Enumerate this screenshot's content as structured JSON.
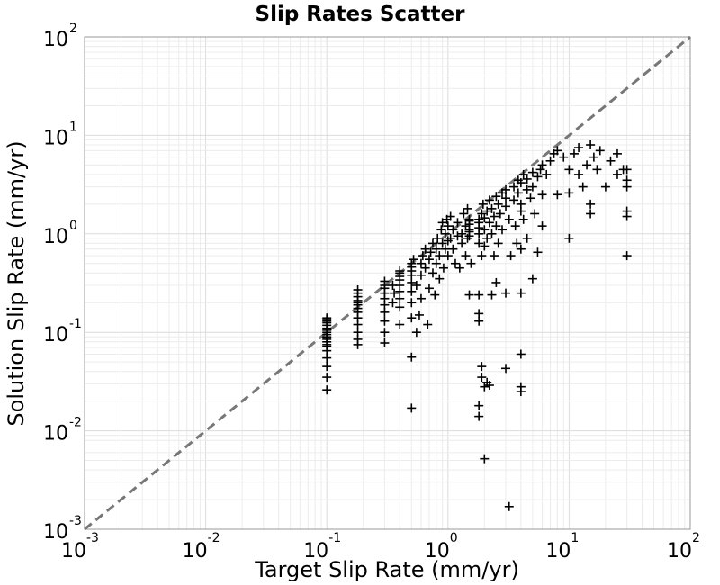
{
  "chart_data": {
    "type": "scatter",
    "title": "Slip Rates Scatter",
    "xlabel": "Target Slip Rate (mm/yr)",
    "ylabel": "Solution Slip Rate (mm/yr)",
    "xscale": "log",
    "yscale": "log",
    "xlim": [
      0.001,
      100
    ],
    "ylim": [
      0.001,
      100
    ],
    "grid": true,
    "marker": "+",
    "marker_color": "#000000",
    "reference_line": {
      "style": "dashed",
      "color": "#777777",
      "x": [
        0.001,
        100
      ],
      "y": [
        0.001,
        100
      ]
    },
    "x_ticks": [
      {
        "base": "10",
        "exp": "-3"
      },
      {
        "base": "10",
        "exp": "-2"
      },
      {
        "base": "10",
        "exp": "-1"
      },
      {
        "base": "10",
        "exp": "0"
      },
      {
        "base": "10",
        "exp": "1"
      },
      {
        "base": "10",
        "exp": "2"
      }
    ],
    "y_ticks": [
      {
        "base": "10",
        "exp": "-3"
      },
      {
        "base": "10",
        "exp": "-2"
      },
      {
        "base": "10",
        "exp": "-1"
      },
      {
        "base": "10",
        "exp": "0"
      },
      {
        "base": "10",
        "exp": "1"
      },
      {
        "base": "10",
        "exp": "2"
      }
    ],
    "points": [
      {
        "x": 0.1,
        "y": 0.026
      },
      {
        "x": 0.1,
        "y": 0.035
      },
      {
        "x": 0.1,
        "y": 0.045
      },
      {
        "x": 0.1,
        "y": 0.055
      },
      {
        "x": 0.1,
        "y": 0.065
      },
      {
        "x": 0.1,
        "y": 0.072
      },
      {
        "x": 0.1,
        "y": 0.08
      },
      {
        "x": 0.1,
        "y": 0.088
      },
      {
        "x": 0.1,
        "y": 0.095
      },
      {
        "x": 0.1,
        "y": 0.1
      },
      {
        "x": 0.1,
        "y": 0.105
      },
      {
        "x": 0.1,
        "y": 0.11
      },
      {
        "x": 0.1,
        "y": 0.118
      },
      {
        "x": 0.1,
        "y": 0.125
      },
      {
        "x": 0.1,
        "y": 0.13
      },
      {
        "x": 0.1,
        "y": 0.135
      },
      {
        "x": 0.1,
        "y": 0.14
      },
      {
        "x": 0.1,
        "y": 0.09
      },
      {
        "x": 0.1,
        "y": 0.085
      },
      {
        "x": 0.1,
        "y": 0.075
      },
      {
        "x": 0.18,
        "y": 0.075
      },
      {
        "x": 0.18,
        "y": 0.085
      },
      {
        "x": 0.18,
        "y": 0.1
      },
      {
        "x": 0.18,
        "y": 0.12
      },
      {
        "x": 0.18,
        "y": 0.14
      },
      {
        "x": 0.18,
        "y": 0.16
      },
      {
        "x": 0.18,
        "y": 0.175
      },
      {
        "x": 0.18,
        "y": 0.19
      },
      {
        "x": 0.18,
        "y": 0.2
      },
      {
        "x": 0.18,
        "y": 0.21
      },
      {
        "x": 0.18,
        "y": 0.23
      },
      {
        "x": 0.18,
        "y": 0.25
      },
      {
        "x": 0.18,
        "y": 0.27
      },
      {
        "x": 0.3,
        "y": 0.078
      },
      {
        "x": 0.3,
        "y": 0.1
      },
      {
        "x": 0.3,
        "y": 0.13
      },
      {
        "x": 0.3,
        "y": 0.16
      },
      {
        "x": 0.3,
        "y": 0.19
      },
      {
        "x": 0.3,
        "y": 0.22
      },
      {
        "x": 0.3,
        "y": 0.25
      },
      {
        "x": 0.3,
        "y": 0.28
      },
      {
        "x": 0.3,
        "y": 0.3
      },
      {
        "x": 0.3,
        "y": 0.33
      },
      {
        "x": 0.35,
        "y": 0.2
      },
      {
        "x": 0.35,
        "y": 0.3
      },
      {
        "x": 0.36,
        "y": 0.25
      },
      {
        "x": 0.4,
        "y": 0.12
      },
      {
        "x": 0.4,
        "y": 0.18
      },
      {
        "x": 0.4,
        "y": 0.22
      },
      {
        "x": 0.4,
        "y": 0.26
      },
      {
        "x": 0.4,
        "y": 0.3
      },
      {
        "x": 0.4,
        "y": 0.34
      },
      {
        "x": 0.4,
        "y": 0.37
      },
      {
        "x": 0.4,
        "y": 0.4
      },
      {
        "x": 0.4,
        "y": 0.42
      },
      {
        "x": 0.5,
        "y": 0.017
      },
      {
        "x": 0.5,
        "y": 0.056
      },
      {
        "x": 0.5,
        "y": 0.14
      },
      {
        "x": 0.5,
        "y": 0.2
      },
      {
        "x": 0.5,
        "y": 0.26
      },
      {
        "x": 0.5,
        "y": 0.32
      },
      {
        "x": 0.5,
        "y": 0.38
      },
      {
        "x": 0.5,
        "y": 0.42
      },
      {
        "x": 0.5,
        "y": 0.46
      },
      {
        "x": 0.5,
        "y": 0.5
      },
      {
        "x": 0.52,
        "y": 0.55
      },
      {
        "x": 0.55,
        "y": 0.1
      },
      {
        "x": 0.55,
        "y": 0.3
      },
      {
        "x": 0.58,
        "y": 0.15
      },
      {
        "x": 0.6,
        "y": 0.22
      },
      {
        "x": 0.6,
        "y": 0.38
      },
      {
        "x": 0.6,
        "y": 0.5
      },
      {
        "x": 0.62,
        "y": 0.6
      },
      {
        "x": 0.65,
        "y": 0.45
      },
      {
        "x": 0.65,
        "y": 0.7
      },
      {
        "x": 0.68,
        "y": 0.12
      },
      {
        "x": 0.7,
        "y": 0.28
      },
      {
        "x": 0.7,
        "y": 0.55
      },
      {
        "x": 0.72,
        "y": 0.65
      },
      {
        "x": 0.75,
        "y": 0.8
      },
      {
        "x": 0.75,
        "y": 0.4
      },
      {
        "x": 0.78,
        "y": 0.24
      },
      {
        "x": 0.8,
        "y": 0.5
      },
      {
        "x": 0.8,
        "y": 0.7
      },
      {
        "x": 0.82,
        "y": 0.9
      },
      {
        "x": 0.85,
        "y": 0.6
      },
      {
        "x": 0.85,
        "y": 0.35
      },
      {
        "x": 0.88,
        "y": 1.1
      },
      {
        "x": 0.9,
        "y": 0.8
      },
      {
        "x": 0.9,
        "y": 1.3
      },
      {
        "x": 0.92,
        "y": 0.45
      },
      {
        "x": 0.95,
        "y": 0.7
      },
      {
        "x": 0.95,
        "y": 1.0
      },
      {
        "x": 0.98,
        "y": 1.4
      },
      {
        "x": 1.0,
        "y": 0.6
      },
      {
        "x": 1.0,
        "y": 0.85
      },
      {
        "x": 1.0,
        "y": 1.2
      },
      {
        "x": 1.05,
        "y": 0.9
      },
      {
        "x": 1.05,
        "y": 1.5
      },
      {
        "x": 1.1,
        "y": 0.7
      },
      {
        "x": 1.1,
        "y": 1.1
      },
      {
        "x": 1.15,
        "y": 0.5
      },
      {
        "x": 1.2,
        "y": 0.95
      },
      {
        "x": 1.2,
        "y": 1.3
      },
      {
        "x": 1.25,
        "y": 0.45
      },
      {
        "x": 1.3,
        "y": 1.0
      },
      {
        "x": 1.3,
        "y": 0.8
      },
      {
        "x": 1.35,
        "y": 1.6
      },
      {
        "x": 1.4,
        "y": 1.2
      },
      {
        "x": 1.4,
        "y": 0.6
      },
      {
        "x": 1.45,
        "y": 1.8
      },
      {
        "x": 1.45,
        "y": 0.9
      },
      {
        "x": 1.5,
        "y": 1.4
      },
      {
        "x": 1.5,
        "y": 1.1
      },
      {
        "x": 1.55,
        "y": 0.5
      },
      {
        "x": 1.5,
        "y": 0.24
      },
      {
        "x": 1.5,
        "y": 0.95
      },
      {
        "x": 1.5,
        "y": 1.25
      },
      {
        "x": 1.5,
        "y": 1.05
      },
      {
        "x": 1.5,
        "y": 1.35
      },
      {
        "x": 1.8,
        "y": 0.014
      },
      {
        "x": 1.8,
        "y": 0.018
      },
      {
        "x": 1.8,
        "y": 0.13
      },
      {
        "x": 1.8,
        "y": 0.155
      },
      {
        "x": 1.8,
        "y": 0.24
      },
      {
        "x": 1.8,
        "y": 0.8
      },
      {
        "x": 1.8,
        "y": 1.0
      },
      {
        "x": 1.8,
        "y": 1.15
      },
      {
        "x": 1.8,
        "y": 1.3
      },
      {
        "x": 1.8,
        "y": 1.4
      },
      {
        "x": 1.9,
        "y": 0.045
      },
      {
        "x": 1.9,
        "y": 0.035
      },
      {
        "x": 1.9,
        "y": 0.6
      },
      {
        "x": 1.9,
        "y": 1.6
      },
      {
        "x": 1.95,
        "y": 2.0
      },
      {
        "x": 2.0,
        "y": 0.0052
      },
      {
        "x": 2.0,
        "y": 0.028
      },
      {
        "x": 2.0,
        "y": 0.75
      },
      {
        "x": 2.0,
        "y": 1.1
      },
      {
        "x": 2.0,
        "y": 1.45
      },
      {
        "x": 2.1,
        "y": 0.031
      },
      {
        "x": 2.1,
        "y": 0.9
      },
      {
        "x": 2.1,
        "y": 1.7
      },
      {
        "x": 2.2,
        "y": 0.029
      },
      {
        "x": 2.2,
        "y": 1.3
      },
      {
        "x": 2.2,
        "y": 2.2
      },
      {
        "x": 2.3,
        "y": 0.24
      },
      {
        "x": 2.3,
        "y": 1.0
      },
      {
        "x": 2.3,
        "y": 1.8
      },
      {
        "x": 2.4,
        "y": 1.5
      },
      {
        "x": 2.4,
        "y": 0.6
      },
      {
        "x": 2.5,
        "y": 2.4
      },
      {
        "x": 2.5,
        "y": 1.2
      },
      {
        "x": 2.5,
        "y": 0.32
      },
      {
        "x": 2.6,
        "y": 2.0
      },
      {
        "x": 2.6,
        "y": 0.8
      },
      {
        "x": 2.7,
        "y": 1.6
      },
      {
        "x": 2.8,
        "y": 2.6
      },
      {
        "x": 2.8,
        "y": 1.1
      },
      {
        "x": 3.0,
        "y": 0.043
      },
      {
        "x": 3.0,
        "y": 0.25
      },
      {
        "x": 3.0,
        "y": 1.9
      },
      {
        "x": 3.0,
        "y": 2.3
      },
      {
        "x": 3.0,
        "y": 2.8
      },
      {
        "x": 3.2,
        "y": 0.0017
      },
      {
        "x": 3.2,
        "y": 1.4
      },
      {
        "x": 3.3,
        "y": 0.6
      },
      {
        "x": 3.5,
        "y": 3.0
      },
      {
        "x": 3.5,
        "y": 2.2
      },
      {
        "x": 3.6,
        "y": 1.2
      },
      {
        "x": 3.7,
        "y": 0.8
      },
      {
        "x": 3.8,
        "y": 3.5
      },
      {
        "x": 3.8,
        "y": 2.6
      },
      {
        "x": 4.0,
        "y": 0.025
      },
      {
        "x": 4.0,
        "y": 0.028
      },
      {
        "x": 4.0,
        "y": 0.06
      },
      {
        "x": 4.0,
        "y": 0.25
      },
      {
        "x": 4.0,
        "y": 0.7
      },
      {
        "x": 4.0,
        "y": 1.7
      },
      {
        "x": 4.0,
        "y": 2.0
      },
      {
        "x": 4.0,
        "y": 3.3
      },
      {
        "x": 4.2,
        "y": 4.0
      },
      {
        "x": 4.2,
        "y": 1.4
      },
      {
        "x": 4.5,
        "y": 2.8
      },
      {
        "x": 4.5,
        "y": 3.6
      },
      {
        "x": 4.5,
        "y": 0.9
      },
      {
        "x": 4.8,
        "y": 2.3
      },
      {
        "x": 5.0,
        "y": 0.35
      },
      {
        "x": 5.0,
        "y": 3.0
      },
      {
        "x": 5.0,
        "y": 4.2
      },
      {
        "x": 5.2,
        "y": 1.6
      },
      {
        "x": 5.5,
        "y": 3.8
      },
      {
        "x": 5.5,
        "y": 0.65
      },
      {
        "x": 5.8,
        "y": 4.5
      },
      {
        "x": 6.0,
        "y": 2.5
      },
      {
        "x": 6.0,
        "y": 5.0
      },
      {
        "x": 6.0,
        "y": 1.2
      },
      {
        "x": 6.5,
        "y": 4.0
      },
      {
        "x": 7.0,
        "y": 5.5
      },
      {
        "x": 7.5,
        "y": 6.5
      },
      {
        "x": 8.0,
        "y": 2.5
      },
      {
        "x": 8.0,
        "y": 7.0
      },
      {
        "x": 9.0,
        "y": 6.0
      },
      {
        "x": 10.0,
        "y": 2.6
      },
      {
        "x": 10.0,
        "y": 4.5
      },
      {
        "x": 10.0,
        "y": 0.9
      },
      {
        "x": 11.0,
        "y": 6.5
      },
      {
        "x": 12.0,
        "y": 4.0
      },
      {
        "x": 12.0,
        "y": 7.5
      },
      {
        "x": 13.0,
        "y": 3.0
      },
      {
        "x": 14.0,
        "y": 5.0
      },
      {
        "x": 15.0,
        "y": 2.0
      },
      {
        "x": 15.0,
        "y": 8.0
      },
      {
        "x": 15.0,
        "y": 1.6
      },
      {
        "x": 16.0,
        "y": 6.0
      },
      {
        "x": 17.0,
        "y": 4.5
      },
      {
        "x": 18.0,
        "y": 7.0
      },
      {
        "x": 20.0,
        "y": 3.0
      },
      {
        "x": 22.0,
        "y": 5.5
      },
      {
        "x": 25.0,
        "y": 4.0
      },
      {
        "x": 25.0,
        "y": 6.5
      },
      {
        "x": 28.0,
        "y": 4.5
      },
      {
        "x": 30.0,
        "y": 1.5
      },
      {
        "x": 30.0,
        "y": 1.7
      },
      {
        "x": 30.0,
        "y": 3.0
      },
      {
        "x": 30.0,
        "y": 3.5
      },
      {
        "x": 30.0,
        "y": 4.5
      },
      {
        "x": 30.0,
        "y": 0.6
      }
    ]
  }
}
